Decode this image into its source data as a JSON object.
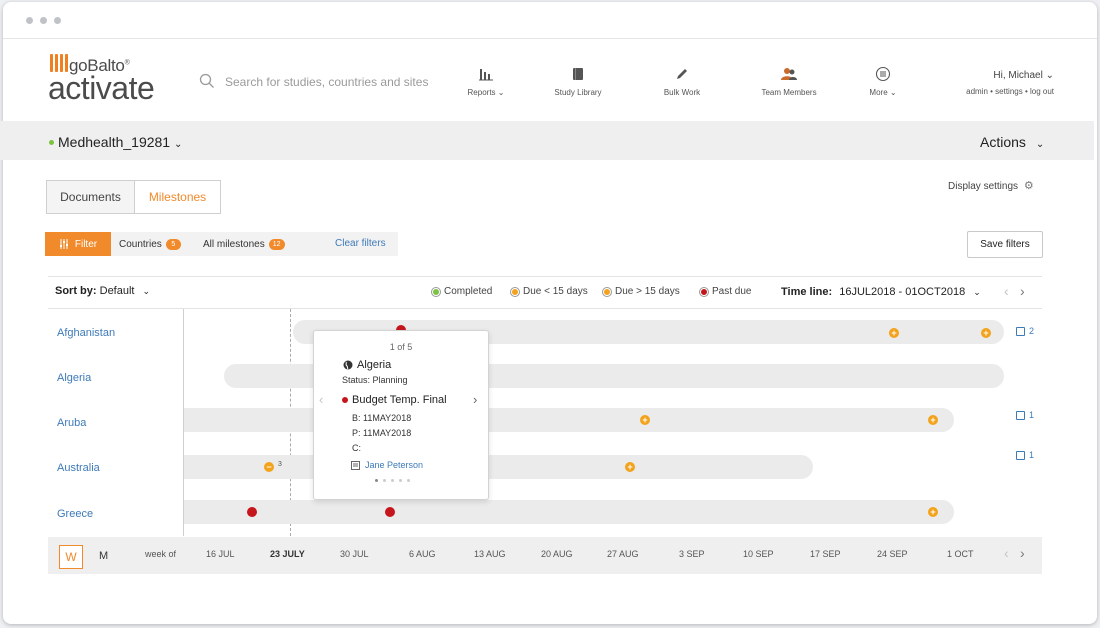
{
  "header": {
    "logo_top": "goBalto",
    "logo_tm": "®",
    "logo_main": "activate",
    "search_placeholder": "Search for studies, countries and sites",
    "nav": [
      {
        "label": "Reports ⌄",
        "icon": "bar-chart-icon"
      },
      {
        "label": "Study Library",
        "icon": "book-icon"
      },
      {
        "label": "Bulk Work",
        "icon": "pencil-icon"
      },
      {
        "label": "Team Members",
        "icon": "people-icon"
      },
      {
        "label": "More ⌄",
        "icon": "menu-circle-icon"
      }
    ],
    "user_greeting": "Hi, Michael ⌄",
    "user_links": "admin • settings • log out"
  },
  "study": {
    "name": "Medhealth_19281",
    "status_color": "#7cc340",
    "actions_label": "Actions"
  },
  "tabs": [
    {
      "label": "Documents",
      "active": false
    },
    {
      "label": "Milestones",
      "active": true
    }
  ],
  "display_settings": "Display settings",
  "filters": {
    "filter_label": "Filter",
    "countries_label": "Countries",
    "countries_count": "5",
    "milestones_label": "All milestones",
    "milestones_count": "12",
    "clear_label": "Clear filters",
    "save_label": "Save filters"
  },
  "toolbar": {
    "sort_label": "Sort by:",
    "sort_value": "Default",
    "legend": [
      {
        "label": "Completed",
        "color": "#7cc340"
      },
      {
        "label": "Due < 15 days",
        "color": "#f3a21c"
      },
      {
        "label": "Due > 15 days",
        "color": "#f3a21c"
      },
      {
        "label": "Past due",
        "color": "#c4161c"
      }
    ],
    "timeline_label": "Time line:",
    "timeline_range": "16JUL2018 - 01OCT2018"
  },
  "rows": [
    {
      "country": "Afghanistan",
      "count": "2"
    },
    {
      "country": "Algeria",
      "count": ""
    },
    {
      "country": "Aruba",
      "count": "1"
    },
    {
      "country": "Australia",
      "count": "1"
    },
    {
      "country": "Greece",
      "count": ""
    }
  ],
  "markers": {
    "australia_cluster": "3"
  },
  "popup": {
    "page": "1 of 5",
    "country": "Algeria",
    "status": "Status: Planning",
    "milestone": "Budget Temp. Final",
    "baseline": "B: 11MAY2018",
    "planned": "P: 11MAY2018",
    "completed": "C:",
    "assignee": "Jane Peterson"
  },
  "axis": {
    "week_btn": "W",
    "month_btn": "M",
    "week_of": "week of",
    "ticks": [
      "16 JUL",
      "23 JULY",
      "30 JUL",
      "6 AUG",
      "13 AUG",
      "20 AUG",
      "27 AUG",
      "3 SEP",
      "10 SEP",
      "17 SEP",
      "24 SEP",
      "1 OCT"
    ]
  },
  "colors": {
    "accent": "#f08a2b",
    "link": "#3d7ab8",
    "past_due": "#c4161c",
    "due": "#f3a21c"
  }
}
